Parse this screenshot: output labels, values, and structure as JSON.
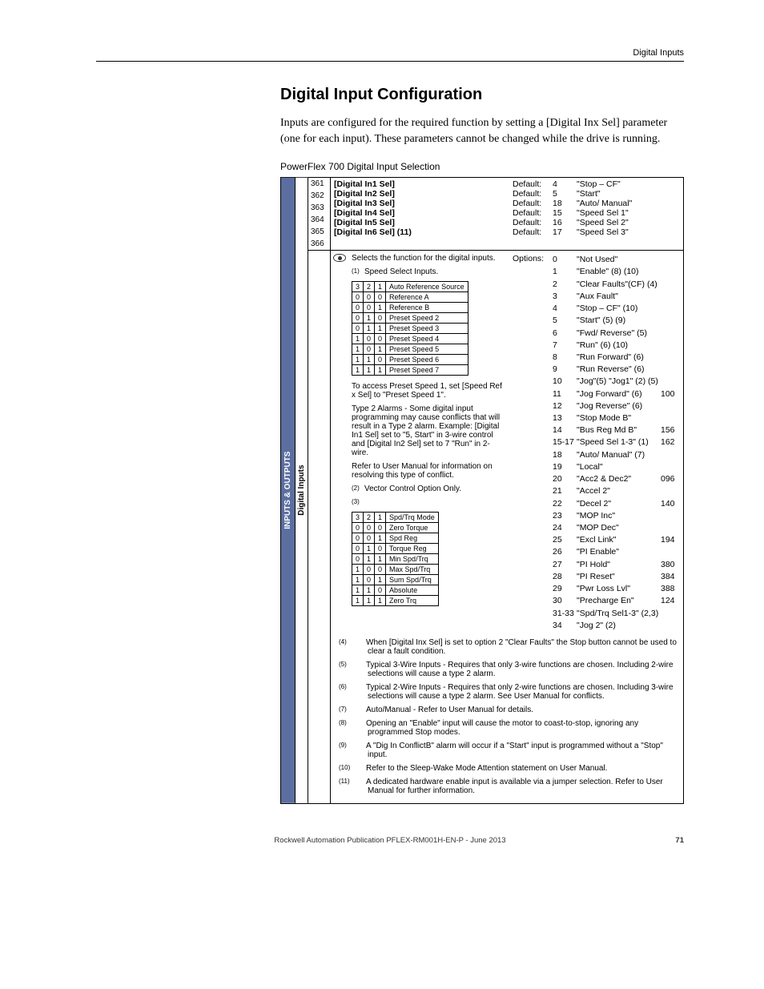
{
  "running_head": "Digital Inputs",
  "section_title": "Digital Input Configuration",
  "intro_para": "Inputs are configured for the required function by setting a [Digital Inx Sel] parameter (one for each input). These parameters cannot be changed while the drive is running.",
  "table_caption": "PowerFlex 700 Digital Input Selection",
  "vband_outer": "INPUTS & OUTPUTS",
  "vband_inner": "Digital Inputs",
  "params": [
    {
      "num": "361",
      "label": "[Digital In1 Sel]",
      "def": "Default:",
      "n": "4",
      "v": "\"Stop – CF\""
    },
    {
      "num": "362",
      "label": "[Digital In2 Sel]",
      "def": "Default:",
      "n": "5",
      "v": "\"Start\""
    },
    {
      "num": "363",
      "label": "[Digital In3 Sel]",
      "def": "Default:",
      "n": "18",
      "v": "\"Auto/ Manual\""
    },
    {
      "num": "364",
      "label": "[Digital In4 Sel]",
      "def": "Default:",
      "n": "15",
      "v": "\"Speed Sel 1\""
    },
    {
      "num": "365",
      "label": "[Digital In5 Sel]",
      "def": "Default:",
      "n": "16",
      "v": "\"Speed Sel 2\""
    },
    {
      "num": "366",
      "label": "[Digital In6 Sel] (11)",
      "def": "Default:",
      "n": "17",
      "v": "\"Speed Sel 3\""
    }
  ],
  "selects_line": "Selects the function for the digital inputs.",
  "note1_marker": "(1)",
  "note1": "Speed Select Inputs.",
  "note2_marker": "(2)",
  "note2": "Vector Control Option Only.",
  "note3_marker": "(3)",
  "speed_table": {
    "cols": [
      "3",
      "2",
      "1",
      "Auto Reference Source"
    ],
    "rows": [
      [
        "0",
        "0",
        "0",
        "Reference A"
      ],
      [
        "0",
        "0",
        "1",
        "Reference B"
      ],
      [
        "0",
        "1",
        "0",
        "Preset Speed 2"
      ],
      [
        "0",
        "1",
        "1",
        "Preset Speed 3"
      ],
      [
        "1",
        "0",
        "0",
        "Preset Speed 4"
      ],
      [
        "1",
        "0",
        "1",
        "Preset Speed 5"
      ],
      [
        "1",
        "1",
        "0",
        "Preset Speed 6"
      ],
      [
        "1",
        "1",
        "1",
        "Preset Speed 7"
      ]
    ]
  },
  "preset1_note": "To access Preset Speed 1, set [Speed Ref x Sel] to \"Preset Speed 1\".",
  "type2_note": "Type 2 Alarms - Some digital input programming may cause conflicts that will result in a Type 2 alarm. Example: [Digital In1 Sel] set to \"5, Start\" in 3-wire control and [Digital In2 Sel] set to 7 \"Run\" in 2-wire.",
  "refer_note": "Refer to User Manual for information on resolving this type of conflict.",
  "spdtrq_table": {
    "cols": [
      "3",
      "2",
      "1",
      "Spd/Trq Mode"
    ],
    "rows": [
      [
        "0",
        "0",
        "0",
        "Zero Torque"
      ],
      [
        "0",
        "0",
        "1",
        "Spd Reg"
      ],
      [
        "0",
        "1",
        "0",
        "Torque Reg"
      ],
      [
        "0",
        "1",
        "1",
        "Min Spd/Trq"
      ],
      [
        "1",
        "0",
        "0",
        "Max Spd/Trq"
      ],
      [
        "1",
        "0",
        "1",
        "Sum Spd/Trq"
      ],
      [
        "1",
        "1",
        "0",
        "Absolute"
      ],
      [
        "1",
        "1",
        "1",
        "Zero Trq"
      ]
    ]
  },
  "options_label": "Options:",
  "options": [
    {
      "n": "0",
      "v": "\"Not Used\"",
      "ref": ""
    },
    {
      "n": "1",
      "v": "\"Enable\" (8) (10)",
      "ref": ""
    },
    {
      "n": "2",
      "v": "\"Clear Faults\"(CF) (4)",
      "ref": ""
    },
    {
      "n": "3",
      "v": "\"Aux Fault\"",
      "ref": ""
    },
    {
      "n": "4",
      "v": "\"Stop – CF\" (10)",
      "ref": ""
    },
    {
      "n": "5",
      "v": "\"Start\" (5) (9)",
      "ref": ""
    },
    {
      "n": "6",
      "v": "\"Fwd/ Reverse\" (5)",
      "ref": ""
    },
    {
      "n": "7",
      "v": "\"Run\" (6) (10)",
      "ref": ""
    },
    {
      "n": "8",
      "v": "\"Run Forward\" (6)",
      "ref": ""
    },
    {
      "n": "9",
      "v": "\"Run Reverse\" (6)",
      "ref": ""
    },
    {
      "n": "10",
      "v": "\"Jog\"(5) \"Jog1\" (2) (5)",
      "ref": ""
    },
    {
      "n": "11",
      "v": "\"Jog Forward\" (6)",
      "ref": "100"
    },
    {
      "n": "12",
      "v": "\"Jog Reverse\" (6)",
      "ref": ""
    },
    {
      "n": "13",
      "v": "\"Stop Mode B\"",
      "ref": ""
    },
    {
      "n": "14",
      "v": "\"Bus Reg Md B\"",
      "ref": "156"
    },
    {
      "n": "15-17",
      "v": "\"Speed Sel 1-3\" (1)",
      "ref": "162"
    },
    {
      "n": "18",
      "v": "\"Auto/ Manual\" (7)",
      "ref": ""
    },
    {
      "n": "19",
      "v": "\"Local\"",
      "ref": ""
    },
    {
      "n": "20",
      "v": "\"Acc2 & Dec2\"",
      "ref": "096"
    },
    {
      "n": "21",
      "v": "\"Accel 2\"",
      "ref": ""
    },
    {
      "n": "22",
      "v": "\"Decel 2\"",
      "ref": "140"
    },
    {
      "n": "23",
      "v": "\"MOP Inc\"",
      "ref": ""
    },
    {
      "n": "24",
      "v": "\"MOP Dec\"",
      "ref": ""
    },
    {
      "n": "25",
      "v": "\"Excl Link\"",
      "ref": "194"
    },
    {
      "n": "26",
      "v": "\"PI Enable\"",
      "ref": ""
    },
    {
      "n": "27",
      "v": "\"PI Hold\"",
      "ref": "380"
    },
    {
      "n": "28",
      "v": "\"PI Reset\"",
      "ref": "384"
    },
    {
      "n": "29",
      "v": "\"Pwr Loss Lvl\"",
      "ref": "388"
    },
    {
      "n": "30",
      "v": "\"Precharge En\"",
      "ref": "124"
    },
    {
      "n": "31-33",
      "v": "\"Spd/Trq Sel1-3\" (2,3)",
      "ref": ""
    },
    {
      "n": "34",
      "v": "\"Jog 2\" (2)",
      "ref": ""
    }
  ],
  "footnotes": [
    {
      "m": "(4)",
      "t": "When [Digital Inx Sel] is set to option 2 \"Clear Faults\" the Stop button cannot be used to clear a fault condition."
    },
    {
      "m": "(5)",
      "t": "Typical 3-Wire Inputs - Requires that only 3-wire functions are chosen. Including 2-wire selections will cause a type 2 alarm."
    },
    {
      "m": "(6)",
      "t": "Typical 2-Wire Inputs - Requires that only 2-wire functions are chosen. Including 3-wire selections will cause a type 2 alarm. See User Manual for conflicts."
    },
    {
      "m": "(7)",
      "t": "Auto/Manual - Refer to User Manual for details."
    },
    {
      "m": "(8)",
      "t": "Opening an \"Enable\" input will cause the motor to coast-to-stop, ignoring any programmed Stop modes."
    },
    {
      "m": "(9)",
      "t": "A \"Dig In ConflictB\" alarm will occur if a \"Start\" input is programmed without a \"Stop\" input."
    },
    {
      "m": "(10)",
      "t": "Refer to the Sleep-Wake Mode Attention statement on User Manual."
    },
    {
      "m": "(11)",
      "t": "A dedicated hardware enable input is available via a jumper selection. Refer to User Manual for further information."
    }
  ],
  "footer_pub": "Rockwell Automation Publication PFLEX-RM001H-EN-P - June 2013",
  "footer_page": "71"
}
